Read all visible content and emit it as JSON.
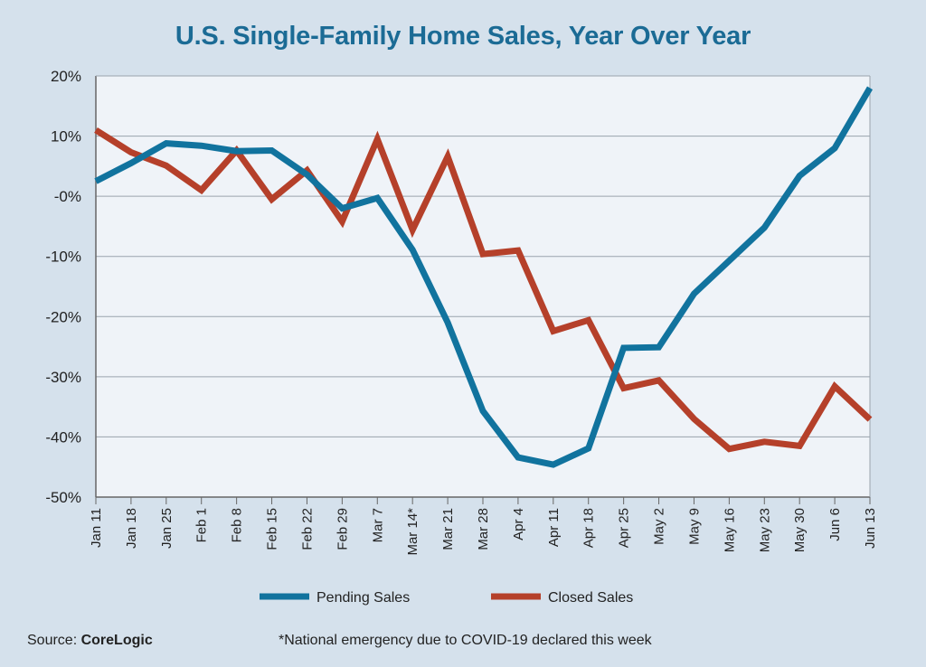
{
  "chart_data": {
    "type": "line",
    "title": "U.S. Single-Family Home Sales, Year Over Year",
    "categories": [
      "Jan 11",
      "Jan 18",
      "Jan 25",
      "Feb 1",
      "Feb 8",
      "Feb 15",
      "Feb 22",
      "Feb 29",
      "Mar 7",
      "Mar 14*",
      "Mar 21",
      "Mar 28",
      "Apr 4",
      "Apr 11",
      "Apr 18",
      "Apr 25",
      "May 2",
      "May 9",
      "May 16",
      "May 23",
      "May 30",
      "Jun 6",
      "Jun 13"
    ],
    "y_tick_labels": [
      "20%",
      "10%",
      "-0%",
      "-10%",
      "-20%",
      "-30%",
      "-40%",
      "-50%"
    ],
    "y_ticks": [
      20,
      10,
      0,
      -10,
      -20,
      -30,
      -40,
      -50
    ],
    "ylim": [
      -50,
      20
    ],
    "grid": true,
    "legend_position": "bottom",
    "series": [
      {
        "name": "Pending Sales",
        "color": "#11739e",
        "values": [
          2.5,
          5.5,
          8.8,
          8.4,
          7.5,
          7.6,
          3.6,
          -2.0,
          -0.3,
          -8.9,
          -21.0,
          -35.7,
          -43.4,
          -44.6,
          -41.9,
          -25.2,
          -25.1,
          -16.2,
          -10.7,
          -5.2,
          3.4,
          8.0,
          18.0
        ]
      },
      {
        "name": "Closed Sales",
        "color": "#b5402a",
        "values": [
          11.0,
          7.3,
          5.1,
          1.0,
          7.6,
          -0.5,
          4.3,
          -4.2,
          9.5,
          -5.6,
          6.6,
          -9.6,
          -9.0,
          -22.4,
          -20.6,
          -31.9,
          -30.6,
          -37.0,
          -42.0,
          -40.8,
          -41.5,
          -31.6,
          -37.1
        ]
      }
    ]
  },
  "footer": {
    "source_label": "Source: ",
    "source_name": "CoreLogic",
    "note": "*National emergency due to COVID-19 declared this week"
  }
}
